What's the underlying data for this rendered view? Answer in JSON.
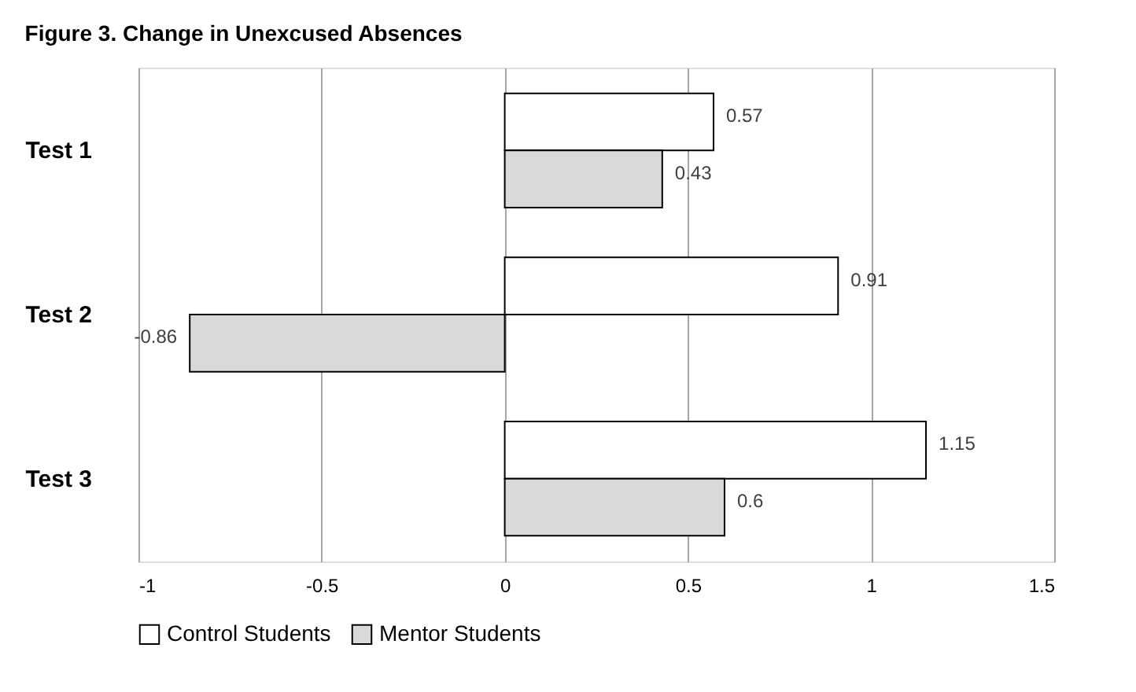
{
  "chart_data": {
    "type": "bar",
    "orientation": "horizontal",
    "title": "Figure 3. Change in Unexcused Absences",
    "categories": [
      "Test 1",
      "Test 2",
      "Test 3"
    ],
    "series": [
      {
        "name": "Control Students",
        "color": "#ffffff",
        "values": [
          0.57,
          0.91,
          1.15
        ]
      },
      {
        "name": "Mentor Students",
        "color": "#d9d9d9",
        "values": [
          0.43,
          -0.86,
          0.6
        ]
      }
    ],
    "xlim": [
      -1,
      1.5
    ],
    "xticks": [
      -1,
      -0.5,
      0,
      0.5,
      1,
      1.5
    ],
    "grid": "x",
    "legend": "bottom",
    "data_labels": true
  }
}
